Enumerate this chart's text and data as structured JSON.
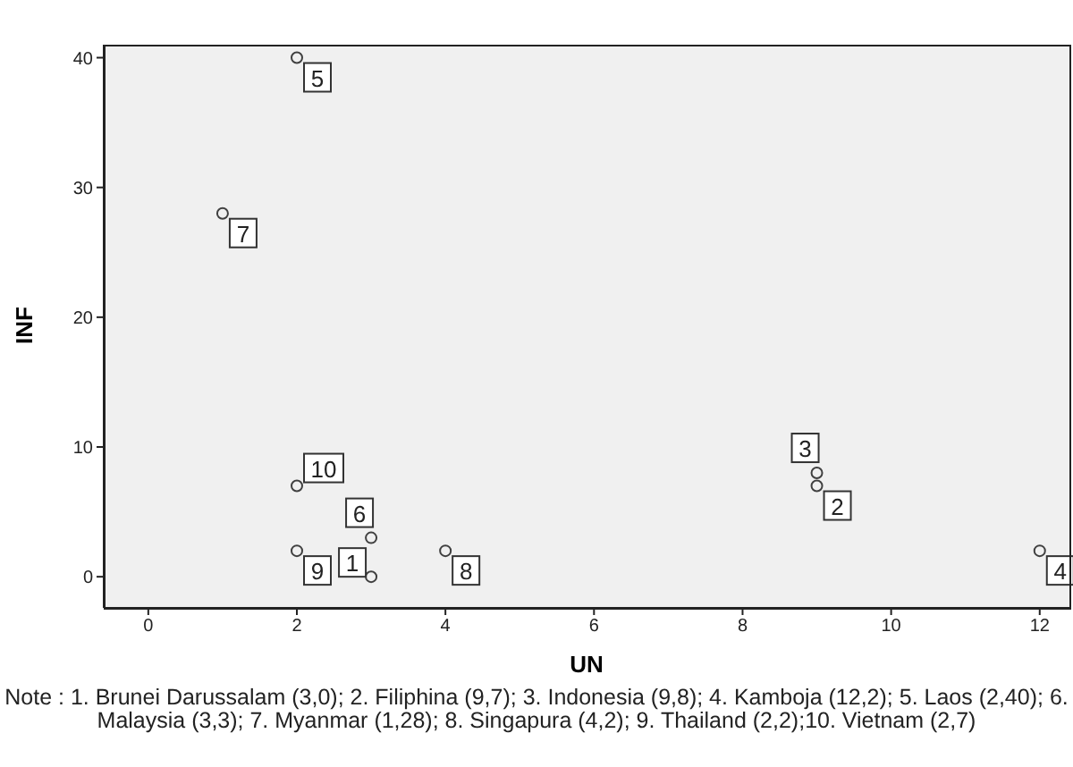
{
  "chart_data": {
    "type": "scatter",
    "xlabel": "UN",
    "ylabel": "INF",
    "x": [
      3,
      9,
      9,
      12,
      2,
      3,
      1,
      4,
      2,
      2
    ],
    "values": [
      0,
      7,
      8,
      2,
      40,
      3,
      28,
      2,
      2,
      7
    ],
    "color": "#404040",
    "marker": "circle",
    "grid": false,
    "legend": false,
    "xlim": [
      -0.6,
      12.4
    ],
    "xticks": [
      0,
      2,
      4,
      6,
      8,
      10,
      12
    ],
    "ylim": [
      -2.4,
      41
    ],
    "yticks": [
      0,
      10,
      20,
      30,
      40
    ],
    "annotations": [
      {
        "text": "1",
        "x": 3,
        "y": 0
      },
      {
        "text": "2",
        "x": 9,
        "y": 7
      },
      {
        "text": "3",
        "x": 9,
        "y": 8
      },
      {
        "text": "4",
        "x": 12,
        "y": 2
      },
      {
        "text": "5",
        "x": 2,
        "y": 40
      },
      {
        "text": "6",
        "x": 3,
        "y": 3
      },
      {
        "text": "7",
        "x": 1,
        "y": 28
      },
      {
        "text": "8",
        "x": 4,
        "y": 2
      },
      {
        "text": "9",
        "x": 2,
        "y": 2
      },
      {
        "text": "10",
        "x": 2,
        "y": 7
      },
      "Note : 1. Brunei Darussalam (3,0); 2. Filiphina (9,7); 3. Indonesia (9,8); 4. Kamboja (12,2); 5. Laos (2,40); 6. Malaysia (3,3); 7. Myanmar (1,28); 8. Singapura (4,2); 9. Thailand (2,2);10. Vietnam (2,7)"
    ]
  }
}
